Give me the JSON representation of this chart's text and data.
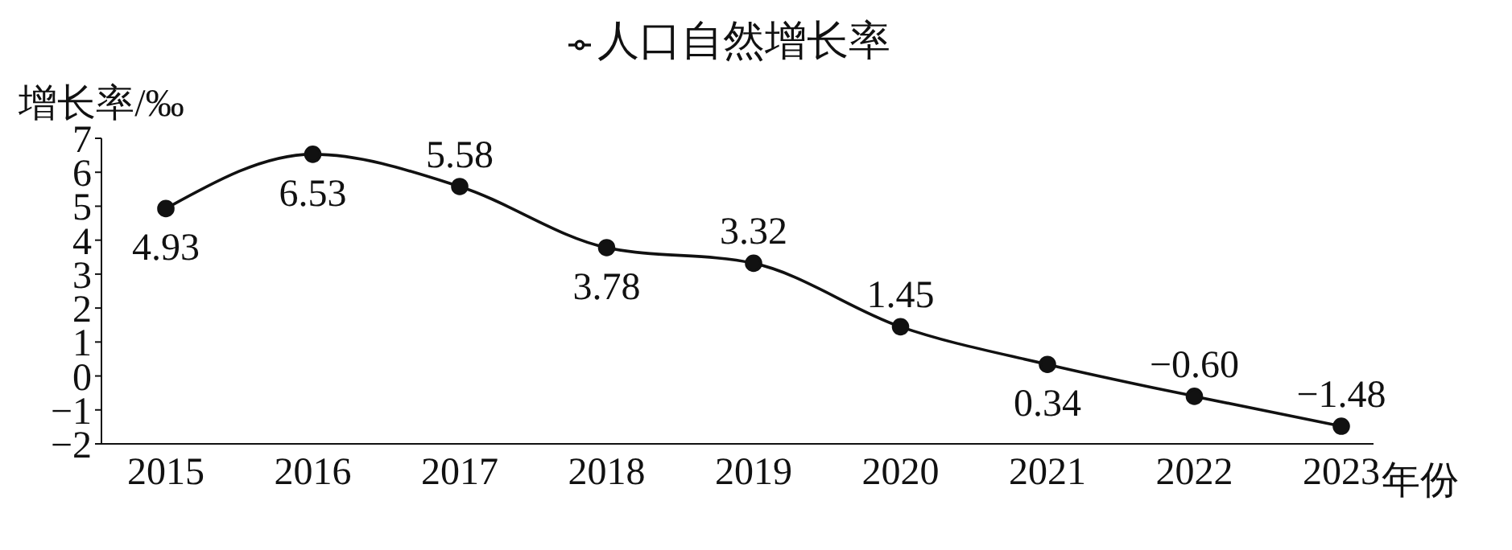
{
  "chart_data": {
    "type": "line",
    "ylabel": "增长率/‰",
    "xlabel": "年份",
    "categories": [
      "2015",
      "2016",
      "2017",
      "2018",
      "2019",
      "2020",
      "2021",
      "2022",
      "2023"
    ],
    "series": [
      {
        "name": "人口自然增长率",
        "color": "#111111",
        "values": [
          4.93,
          6.53,
          5.58,
          3.78,
          3.32,
          1.45,
          0.34,
          -0.6,
          -1.48
        ],
        "value_labels": [
          "4.93",
          "6.53",
          "5.58",
          "3.78",
          "3.32",
          "1.45",
          "0.34",
          "−0.60",
          "−1.48"
        ]
      }
    ],
    "ylim": [
      -2,
      7
    ],
    "yticks": [
      {
        "value": -2,
        "label": "−2"
      },
      {
        "value": -1,
        "label": "−1"
      },
      0,
      1,
      2,
      3,
      4,
      5,
      6,
      7
    ],
    "marker": "circle",
    "line_style": "solid",
    "grid": false,
    "legend": "top"
  }
}
